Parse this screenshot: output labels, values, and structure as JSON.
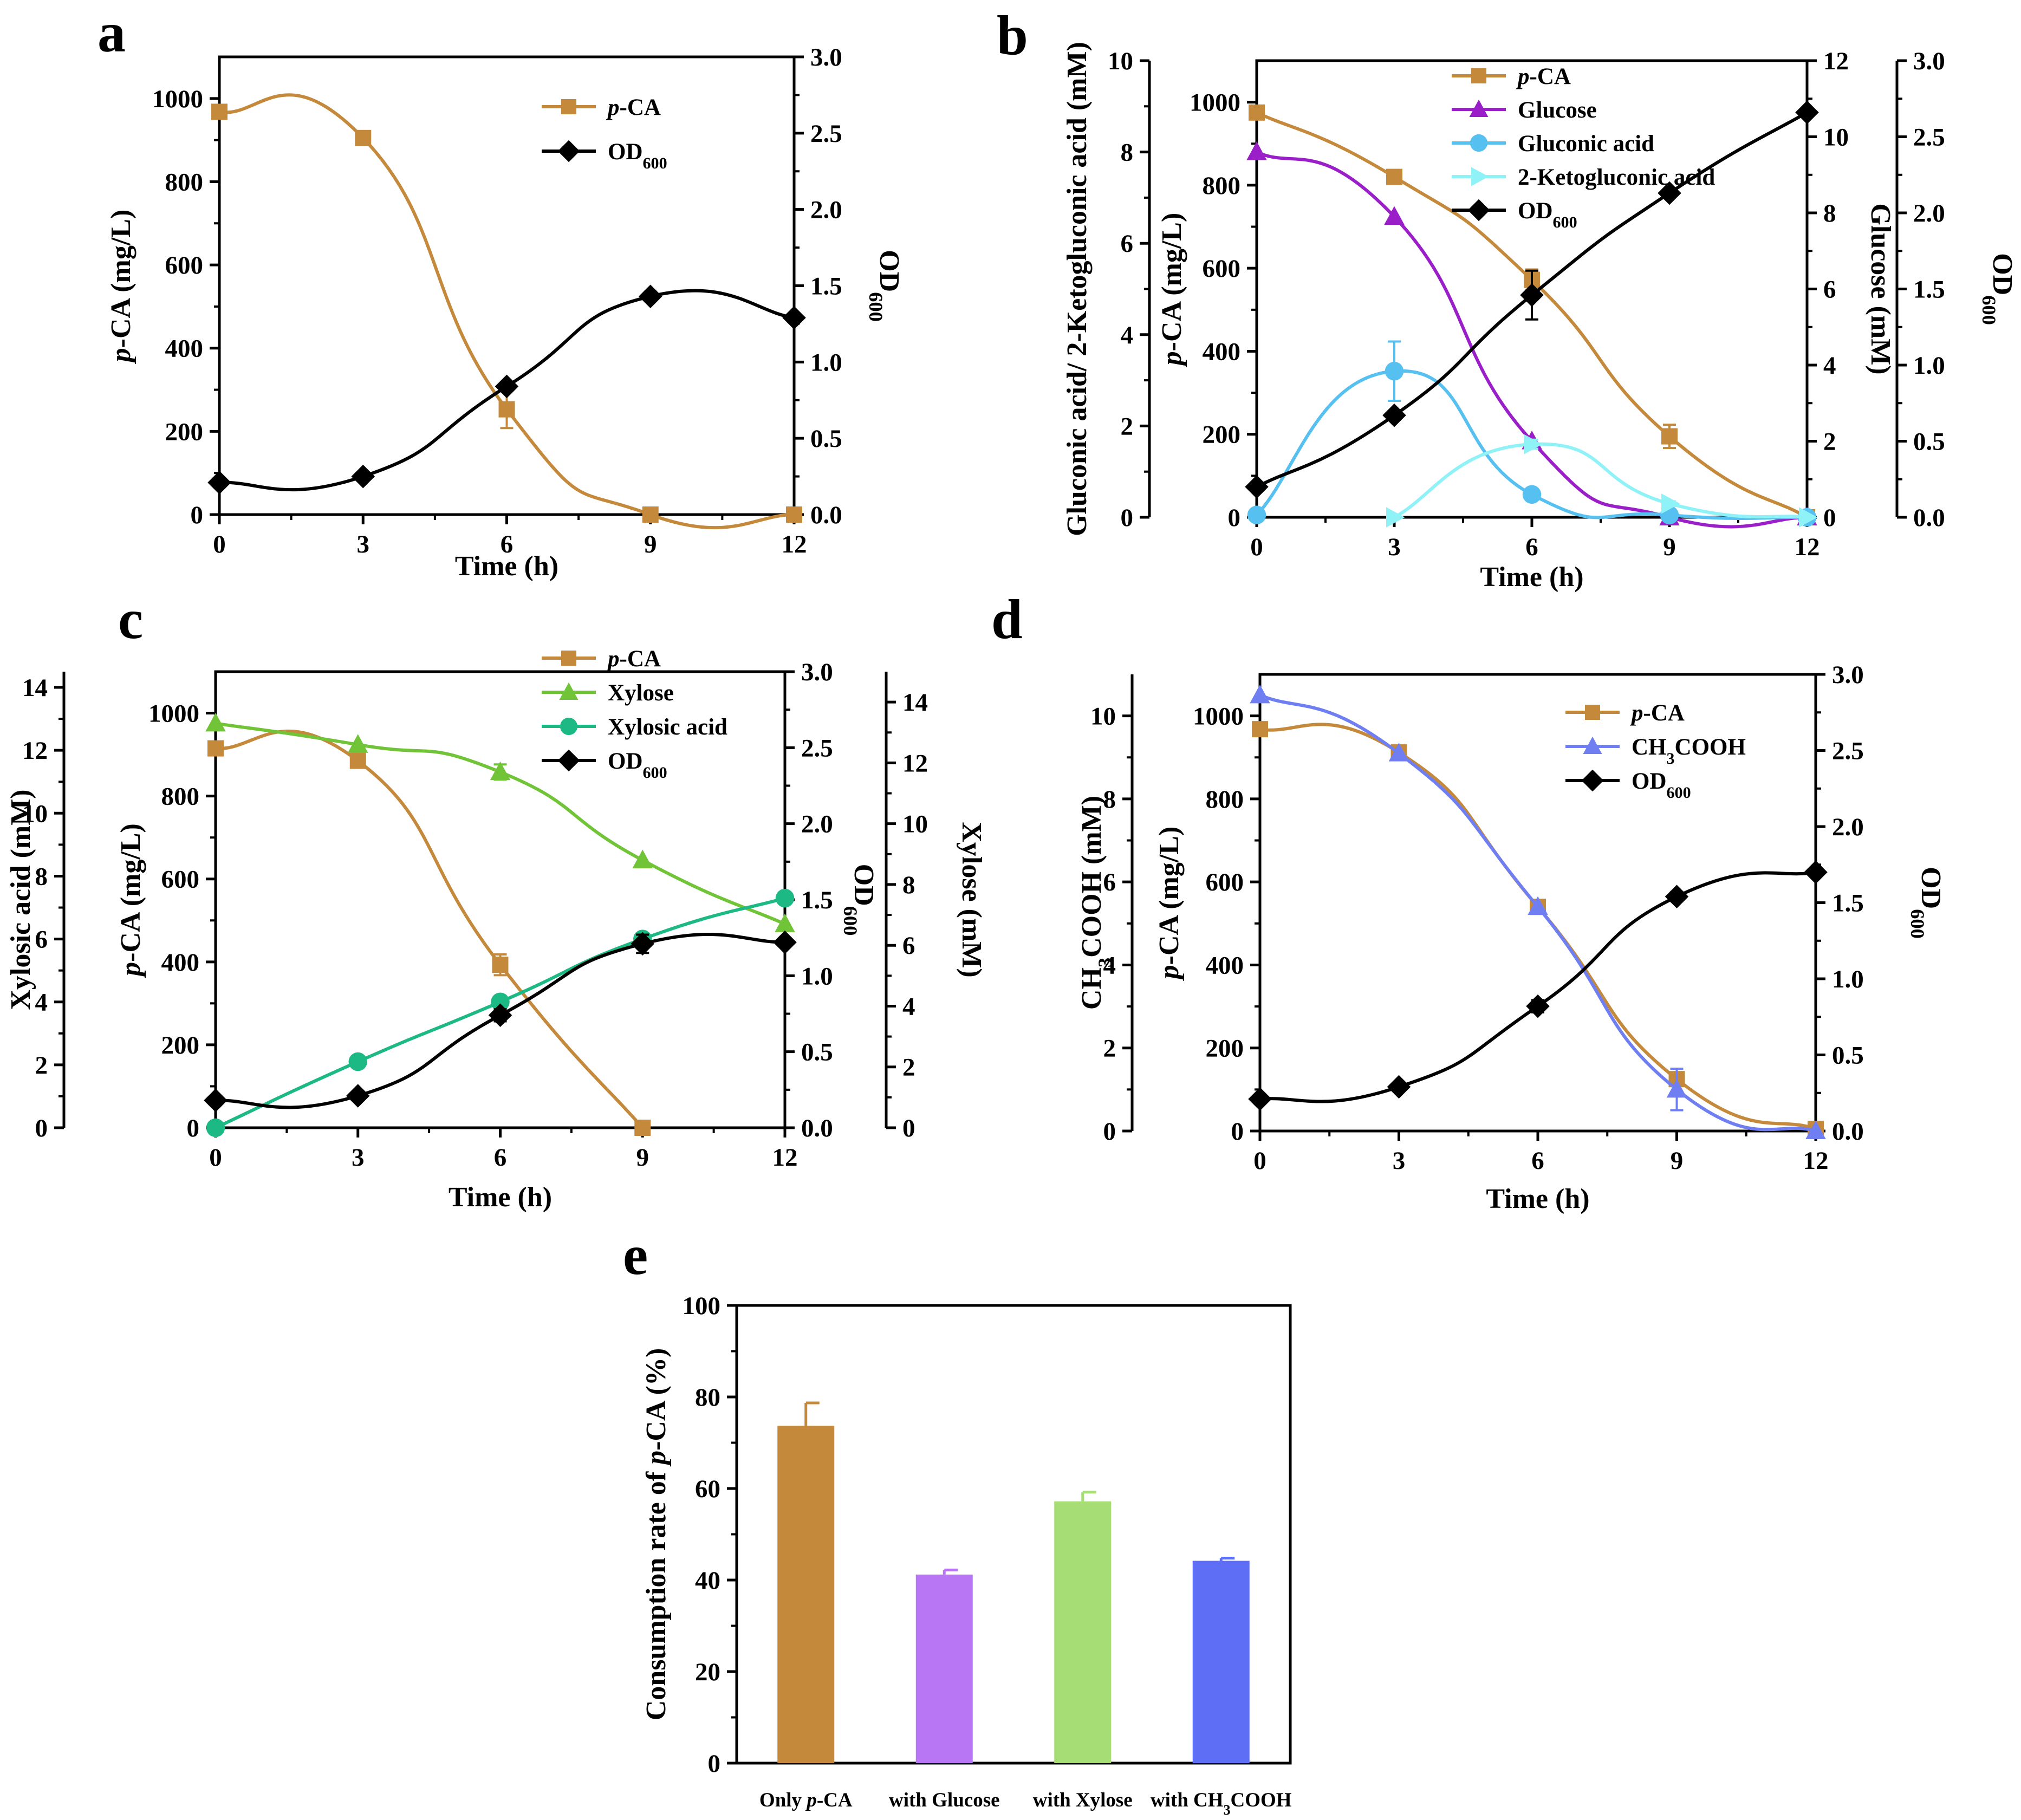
{
  "chart_data": [
    {
      "panel": "a",
      "type": "line",
      "x": [
        0,
        3,
        6,
        9,
        12
      ],
      "xlabel": "Time (h)",
      "xlim": [
        0,
        12
      ],
      "xticks": [
        "0",
        "3",
        "6",
        "9",
        "12"
      ],
      "series": [
        {
          "name": "p-CA",
          "axis": "left",
          "color": "#c4893b",
          "marker": "square",
          "values": [
            968,
            905,
            253,
            0,
            0
          ],
          "errors": [
            0,
            0,
            45,
            0,
            0
          ]
        },
        {
          "name": "OD600",
          "axis": "right1",
          "color": "#000000",
          "marker": "diamond",
          "values": [
            0.21,
            0.25,
            0.84,
            1.43,
            1.29
          ],
          "errors": [
            0,
            0,
            0.03,
            0.03,
            0.02
          ]
        }
      ],
      "axes": {
        "left": {
          "label": [
            "p",
            "-CA (mg/L)"
          ],
          "ylim": [
            0,
            1100
          ],
          "ticks": [
            "0",
            "200",
            "400",
            "600",
            "800",
            "1000"
          ]
        },
        "right1": {
          "label": [
            "OD",
            "600"
          ],
          "ylim": [
            0,
            3.0
          ],
          "ticks": [
            "0.0",
            "0.5",
            "1.0",
            "1.5",
            "2.0",
            "2.5",
            "3.0"
          ]
        }
      },
      "legend": [
        [
          "p",
          "-CA"
        ],
        [
          "OD",
          "600"
        ]
      ]
    },
    {
      "panel": "b",
      "type": "line",
      "x": [
        0,
        3,
        6,
        9,
        12
      ],
      "xlabel": "Time (h)",
      "xlim": [
        0,
        12
      ],
      "xticks": [
        "0",
        "3",
        "6",
        "9",
        "12"
      ],
      "series": [
        {
          "name": "p-CA",
          "axis": "left",
          "color": "#c4893b",
          "marker": "square",
          "values": [
            975,
            820,
            572,
            195,
            0
          ],
          "errors": [
            0,
            0,
            25,
            28,
            0
          ]
        },
        {
          "name": "Glucose",
          "axis": "right1",
          "color": "#9b1fc8",
          "marker": "triangle-up",
          "values": [
            9.6,
            7.9,
            2.0,
            0,
            0
          ],
          "errors": [
            0,
            0,
            0,
            0,
            0
          ]
        },
        {
          "name": "Gluconic acid",
          "axis": "far-left",
          "color": "#56c1f1",
          "marker": "circle",
          "values": [
            0.05,
            3.2,
            0.5,
            0.05,
            0
          ],
          "errors": [
            0,
            0.65,
            0.08,
            0,
            0
          ]
        },
        {
          "name": "2-Ketogluconic acid",
          "axis": "far-left",
          "color": "#8ff2f7",
          "marker": "triangle-right",
          "values": [
            null,
            0,
            1.6,
            0.3,
            0
          ],
          "errors": [
            0,
            0,
            0.1,
            0.05,
            0
          ]
        },
        {
          "name": "OD600",
          "axis": "right2",
          "color": "#000000",
          "marker": "diamond",
          "values": [
            0.2,
            0.67,
            1.46,
            2.13,
            2.66
          ],
          "errors": [
            0,
            0,
            0.16,
            0,
            0
          ]
        }
      ],
      "axes": {
        "left": {
          "label": [
            "p",
            "-CA (mg/L)"
          ],
          "ylim": [
            0,
            1100
          ],
          "ticks": [
            "0",
            "200",
            "400",
            "600",
            "800",
            "1000"
          ]
        },
        "far-left": {
          "label": "Gluconic acid/ 2-Ketogluconic acid (mM)",
          "ylim": [
            0,
            10
          ],
          "ticks": [
            "0",
            "2",
            "4",
            "6",
            "8",
            "10"
          ]
        },
        "right1": {
          "label": "Glucose (mM)",
          "ylim": [
            0,
            12
          ],
          "ticks": [
            "0",
            "2",
            "4",
            "6",
            "8",
            "10",
            "12"
          ]
        },
        "right2": {
          "label": [
            "OD",
            "600"
          ],
          "ylim": [
            0,
            3.0
          ],
          "ticks": [
            "0.0",
            "0.5",
            "1.0",
            "1.5",
            "2.0",
            "2.5",
            "3.0"
          ]
        }
      },
      "legend": [
        [
          "p",
          "-CA"
        ],
        "Glucose",
        "Gluconic acid",
        "2-Ketogluconic acid",
        [
          "OD",
          "600"
        ]
      ]
    },
    {
      "panel": "c",
      "type": "line",
      "x": [
        0,
        3,
        6,
        9,
        12
      ],
      "xlabel": "Time (h)",
      "xlim": [
        0,
        12
      ],
      "xticks": [
        "0",
        "3",
        "6",
        "9",
        "12"
      ],
      "series": [
        {
          "name": "p-CA",
          "axis": "left",
          "color": "#c4893b",
          "marker": "square",
          "values": [
            915,
            885,
            393,
            0,
            null
          ],
          "errors": [
            0,
            0,
            25,
            0,
            0
          ]
        },
        {
          "name": "Xylose",
          "axis": "right2",
          "color": "#71c437",
          "marker": "triangle-up",
          "values": [
            13.3,
            12.6,
            11.7,
            8.8,
            6.7
          ],
          "errors": [
            0,
            0,
            0.25,
            0,
            0
          ]
        },
        {
          "name": "Xylosic acid",
          "axis": "far-left",
          "color": "#1db984",
          "marker": "circle",
          "values": [
            0,
            2.1,
            4.0,
            6.0,
            7.3
          ],
          "errors": [
            0,
            0,
            0,
            0,
            0
          ]
        },
        {
          "name": "OD600",
          "axis": "right1",
          "color": "#000000",
          "marker": "diamond",
          "values": [
            0.18,
            0.21,
            0.74,
            1.21,
            1.22
          ],
          "errors": [
            0,
            0.02,
            0.04,
            0.06,
            0
          ]
        }
      ],
      "axes": {
        "left": {
          "label": [
            "p",
            "-CA (mg/L)"
          ],
          "ylim": [
            0,
            1100
          ],
          "ticks": [
            "0",
            "200",
            "400",
            "600",
            "800",
            "1000"
          ]
        },
        "far-left": {
          "label": "Xylosic acid (mM)",
          "ylim": [
            0,
            14.5
          ],
          "ticks": [
            "0",
            "2",
            "4",
            "6",
            "8",
            "10",
            "12",
            "14"
          ]
        },
        "right1": {
          "label": [
            "OD",
            "600"
          ],
          "ylim": [
            0,
            3.0
          ],
          "ticks": [
            "0.0",
            "0.5",
            "1.0",
            "1.5",
            "2.0",
            "2.5",
            "3.0"
          ]
        },
        "right2": {
          "label": "Xylose (mM)",
          "ylim": [
            0,
            15
          ],
          "ticks": [
            "0",
            "2",
            "4",
            "6",
            "8",
            "10",
            "12",
            "14"
          ]
        }
      },
      "legend": [
        [
          "p",
          "-CA"
        ],
        "Xylose",
        "Xylosic acid",
        [
          "OD",
          "600"
        ]
      ]
    },
    {
      "panel": "d",
      "type": "line",
      "x": [
        0,
        3,
        6,
        9,
        12
      ],
      "xlabel": "Time (h)",
      "xlim": [
        0,
        12
      ],
      "xticks": [
        "0",
        "3",
        "6",
        "9",
        "12"
      ],
      "series": [
        {
          "name": "p-CA",
          "axis": "left",
          "color": "#c4893b",
          "marker": "square",
          "values": [
            968,
            912,
            540,
            125,
            5
          ],
          "errors": [
            0,
            0,
            0,
            0,
            0
          ]
        },
        {
          "name": "CH3COOH",
          "axis": "far-left",
          "color": "#6f7ff2",
          "marker": "triangle-up",
          "values": [
            10.5,
            9.1,
            5.4,
            1.0,
            0
          ],
          "errors": [
            0,
            0,
            0,
            0.5,
            0
          ]
        },
        {
          "name": "OD600",
          "axis": "right1",
          "color": "#000000",
          "marker": "diamond",
          "values": [
            0.21,
            0.29,
            0.82,
            1.54,
            1.7
          ],
          "errors": [
            0,
            0,
            0.04,
            0.03,
            0
          ]
        }
      ],
      "axes": {
        "left": {
          "label": [
            "p",
            "-CA (mg/L)"
          ],
          "ylim": [
            0,
            1100
          ],
          "ticks": [
            "0",
            "200",
            "400",
            "600",
            "800",
            "1000"
          ]
        },
        "far-left": {
          "label": [
            "CH",
            "3",
            "COOH (mM)"
          ],
          "ylim": [
            0,
            11
          ],
          "ticks": [
            "0",
            "2",
            "4",
            "6",
            "8",
            "10"
          ]
        },
        "right1": {
          "label": [
            "OD",
            "600"
          ],
          "ylim": [
            0,
            3.0
          ],
          "ticks": [
            "0.0",
            "0.5",
            "1.0",
            "1.5",
            "2.0",
            "2.5",
            "3.0"
          ]
        }
      },
      "legend": [
        [
          "p",
          "-CA"
        ],
        [
          "CH",
          "3",
          "COOH"
        ],
        [
          "OD",
          "600"
        ]
      ]
    },
    {
      "panel": "e",
      "type": "bar",
      "categories": [
        [
          "Only ",
          "p",
          "-CA"
        ],
        "with Glucose",
        "with Xylose",
        [
          "with CH",
          "3",
          "COOH"
        ]
      ],
      "values": [
        73.7,
        41.2,
        57.2,
        44.2
      ],
      "errors": [
        5.0,
        1.0,
        2.0,
        0.6
      ],
      "colors": [
        "#c4893b",
        "#b876f4",
        "#a6dd74",
        "#5e6ff6"
      ],
      "ylabel": [
        "Consumption rate of ",
        "p",
        "-CA (%)"
      ],
      "ylim": [
        0,
        100
      ],
      "yticks": [
        "0",
        "20",
        "40",
        "60",
        "80",
        "100"
      ]
    }
  ]
}
